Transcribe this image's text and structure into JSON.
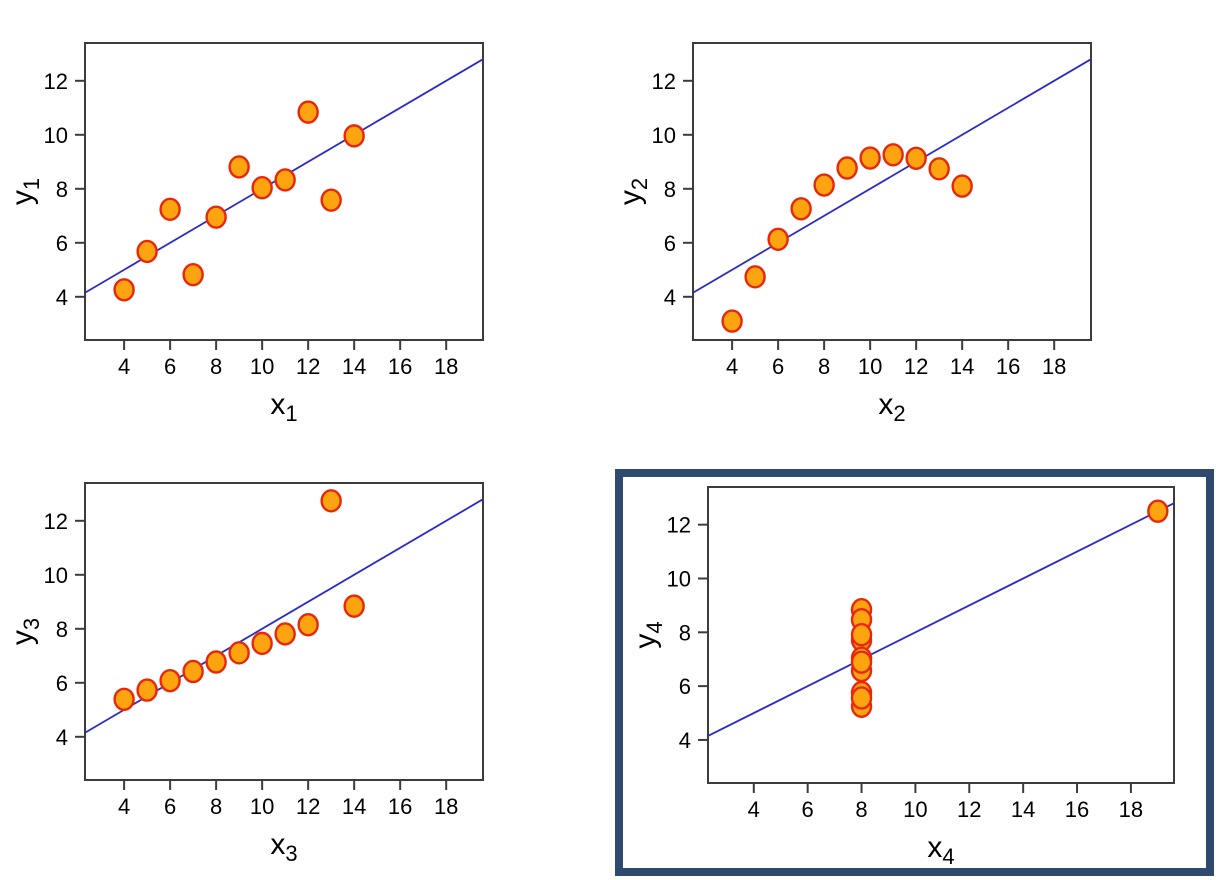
{
  "figure": {
    "background": "#FFFFFF",
    "accent_colors": {
      "point_fill": "#FFA411",
      "point_stroke": "#E8270B",
      "fit_line": "#2B2BC8",
      "axis": "#3C3C3C",
      "text": "#000000",
      "highlight_frame": "#2F4A6E"
    },
    "highlighted_panel": "y4-vs-x4"
  },
  "chart_data": [
    {
      "id": "y1-vs-x1",
      "type": "scatter",
      "title": "",
      "xlabel": "x1",
      "ylabel": "y1",
      "x": [
        10,
        8,
        13,
        9,
        11,
        14,
        6,
        4,
        12,
        7,
        5
      ],
      "y": [
        8.04,
        6.95,
        7.58,
        8.81,
        8.33,
        9.96,
        7.24,
        4.26,
        10.84,
        4.82,
        5.68
      ],
      "x_ticks": [
        4,
        6,
        8,
        10,
        12,
        14,
        16,
        18
      ],
      "y_ticks": [
        4,
        6,
        8,
        10,
        12
      ],
      "xlim": [
        2.3,
        19.6
      ],
      "ylim": [
        2.4,
        13.4
      ],
      "fit_line": {
        "slope": 0.5,
        "intercept": 3
      },
      "grid": false,
      "legend": null,
      "highlighted": false
    },
    {
      "id": "y2-vs-x2",
      "type": "scatter",
      "title": "",
      "xlabel": "x2",
      "ylabel": "y2",
      "x": [
        10,
        8,
        13,
        9,
        11,
        14,
        6,
        4,
        12,
        7,
        5
      ],
      "y": [
        9.14,
        8.14,
        8.74,
        8.77,
        9.26,
        8.1,
        6.13,
        3.1,
        9.13,
        7.26,
        4.74
      ],
      "x_ticks": [
        4,
        6,
        8,
        10,
        12,
        14,
        16,
        18
      ],
      "y_ticks": [
        4,
        6,
        8,
        10,
        12
      ],
      "xlim": [
        2.3,
        19.6
      ],
      "ylim": [
        2.4,
        13.4
      ],
      "fit_line": {
        "slope": 0.5,
        "intercept": 3
      },
      "grid": false,
      "legend": null,
      "highlighted": false
    },
    {
      "id": "y3-vs-x3",
      "type": "scatter",
      "title": "",
      "xlabel": "x3",
      "ylabel": "y3",
      "x": [
        10,
        8,
        13,
        9,
        11,
        14,
        6,
        4,
        12,
        7,
        5
      ],
      "y": [
        7.46,
        6.77,
        12.74,
        7.11,
        7.81,
        8.84,
        6.08,
        5.39,
        8.15,
        6.42,
        5.73
      ],
      "x_ticks": [
        4,
        6,
        8,
        10,
        12,
        14,
        16,
        18
      ],
      "y_ticks": [
        4,
        6,
        8,
        10,
        12
      ],
      "xlim": [
        2.3,
        19.6
      ],
      "ylim": [
        2.4,
        13.4
      ],
      "fit_line": {
        "slope": 0.5,
        "intercept": 3
      },
      "grid": false,
      "legend": null,
      "highlighted": false
    },
    {
      "id": "y4-vs-x4",
      "type": "scatter",
      "title": "",
      "xlabel": "x4",
      "ylabel": "y4",
      "x": [
        8,
        8,
        8,
        8,
        8,
        8,
        8,
        19,
        8,
        8,
        8
      ],
      "y": [
        6.58,
        5.76,
        7.71,
        8.84,
        8.47,
        7.04,
        5.25,
        12.5,
        5.56,
        7.91,
        6.89
      ],
      "x_ticks": [
        4,
        6,
        8,
        10,
        12,
        14,
        16,
        18
      ],
      "y_ticks": [
        4,
        6,
        8,
        10,
        12
      ],
      "xlim": [
        2.3,
        19.6
      ],
      "ylim": [
        2.4,
        13.4
      ],
      "fit_line": {
        "slope": 0.5,
        "intercept": 3
      },
      "grid": false,
      "legend": null,
      "highlighted": true
    }
  ]
}
